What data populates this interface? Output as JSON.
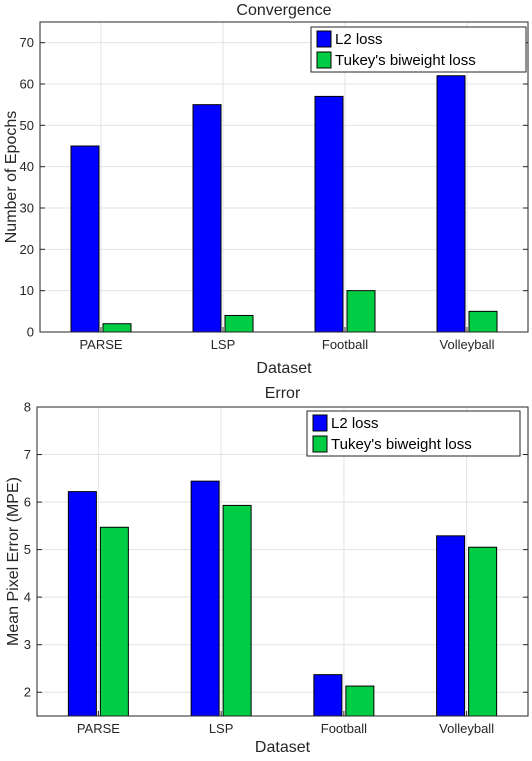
{
  "chart_data": [
    {
      "type": "bar",
      "title": "Convergence",
      "xlabel": "Dataset",
      "ylabel": "Number of Epochs",
      "categories": [
        "PARSE",
        "LSP",
        "Football",
        "Volleyball"
      ],
      "series": [
        {
          "name": "L2 loss",
          "color": "#0000ff",
          "values": [
            45,
            55,
            57,
            62
          ]
        },
        {
          "name": "Tukey's biweight loss",
          "color": "#00cc44",
          "values": [
            2,
            4,
            10,
            5
          ]
        }
      ],
      "ylim": [
        0,
        75
      ],
      "yticks": [
        0,
        10,
        20,
        30,
        40,
        50,
        60,
        70
      ],
      "grid": true,
      "legend": "top-right"
    },
    {
      "type": "bar",
      "title": "Error",
      "xlabel": "Dataset",
      "ylabel": "Mean Pixel Error (MPE)",
      "categories": [
        "PARSE",
        "LSP",
        "Football",
        "Volleyball"
      ],
      "series": [
        {
          "name": "L2 loss",
          "color": "#0000ff",
          "values": [
            6.22,
            6.44,
            2.37,
            5.29
          ]
        },
        {
          "name": "Tukey's biweight loss",
          "color": "#00cc44",
          "values": [
            5.47,
            5.93,
            2.13,
            5.05
          ]
        }
      ],
      "ylim": [
        1.5,
        8
      ],
      "yticks": [
        2,
        3,
        4,
        5,
        6,
        7,
        8
      ],
      "grid": true,
      "legend": "top-right"
    }
  ]
}
